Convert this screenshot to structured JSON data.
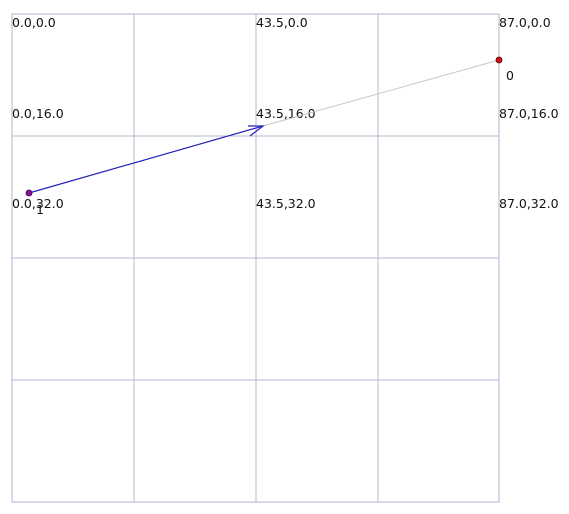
{
  "diagram": {
    "grid": {
      "x_values": [
        0.0,
        43.5,
        87.0
      ],
      "y_values": [
        0.0,
        16.0,
        32.0
      ],
      "columns": 4,
      "rows": 4
    },
    "coordinate_labels": [
      {
        "text": "0.0,0.0"
      },
      {
        "text": "43.5,0.0"
      },
      {
        "text": "87.0,0.0"
      },
      {
        "text": "0.0,16.0"
      },
      {
        "text": "43.5,16.0"
      },
      {
        "text": "87.0,16.0"
      },
      {
        "text": "0.0,32.0"
      },
      {
        "text": "43.5,32.0"
      },
      {
        "text": "87.0,32.0"
      }
    ],
    "points": [
      {
        "label": "0",
        "x": 87.0,
        "y": 7.5,
        "color": "#cc1111"
      },
      {
        "label": "1",
        "x": 3.0,
        "y": 30.5,
        "color": "#881199"
      }
    ],
    "path_segment_color": "#c8c8c8",
    "arrow_color": "#2222bb"
  }
}
